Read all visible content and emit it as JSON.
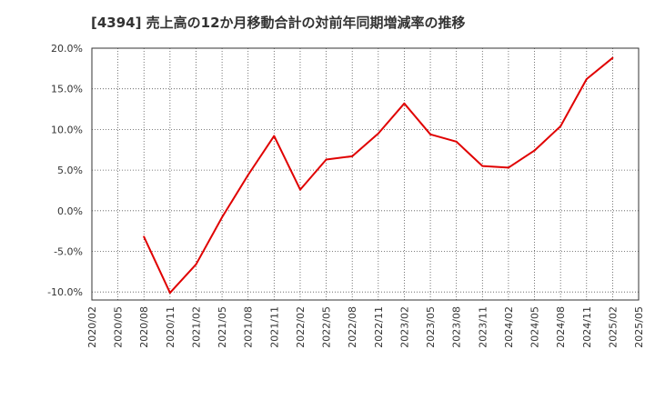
{
  "chart_data": {
    "type": "line",
    "title": "[4394]  売上高の12か月移動合計の対前年同期増減率の推移",
    "xlabel": "",
    "ylabel": "",
    "x_ticks": [
      "2020/02",
      "2020/05",
      "2020/08",
      "2020/11",
      "2021/02",
      "2021/05",
      "2021/08",
      "2021/11",
      "2022/02",
      "2022/05",
      "2022/08",
      "2022/11",
      "2023/02",
      "2023/05",
      "2023/08",
      "2023/11",
      "2024/02",
      "2024/05",
      "2024/08",
      "2024/11",
      "2025/02",
      "2025/05"
    ],
    "y_ticks": [
      "20.0%",
      "15.0%",
      "10.0%",
      "5.0%",
      "0.0%",
      "-5.0%",
      "-10.0%"
    ],
    "ylim": [
      -11,
      20.5
    ],
    "grid": true,
    "series": [
      {
        "color": "#e00000",
        "x": [
          "2020/08",
          "2020/11",
          "2021/02",
          "2021/05",
          "2021/08",
          "2021/11",
          "2022/02",
          "2022/05",
          "2022/08",
          "2022/11",
          "2023/02",
          "2023/05",
          "2023/08",
          "2023/11",
          "2024/02",
          "2024/05",
          "2024/08",
          "2024/11",
          "2025/02"
        ],
        "values": [
          -3.2,
          -10.1,
          -6.6,
          -0.8,
          4.4,
          9.2,
          2.6,
          6.3,
          6.7,
          9.5,
          13.2,
          9.4,
          8.5,
          5.5,
          5.3,
          7.4,
          10.4,
          16.2,
          18.8
        ]
      }
    ]
  }
}
